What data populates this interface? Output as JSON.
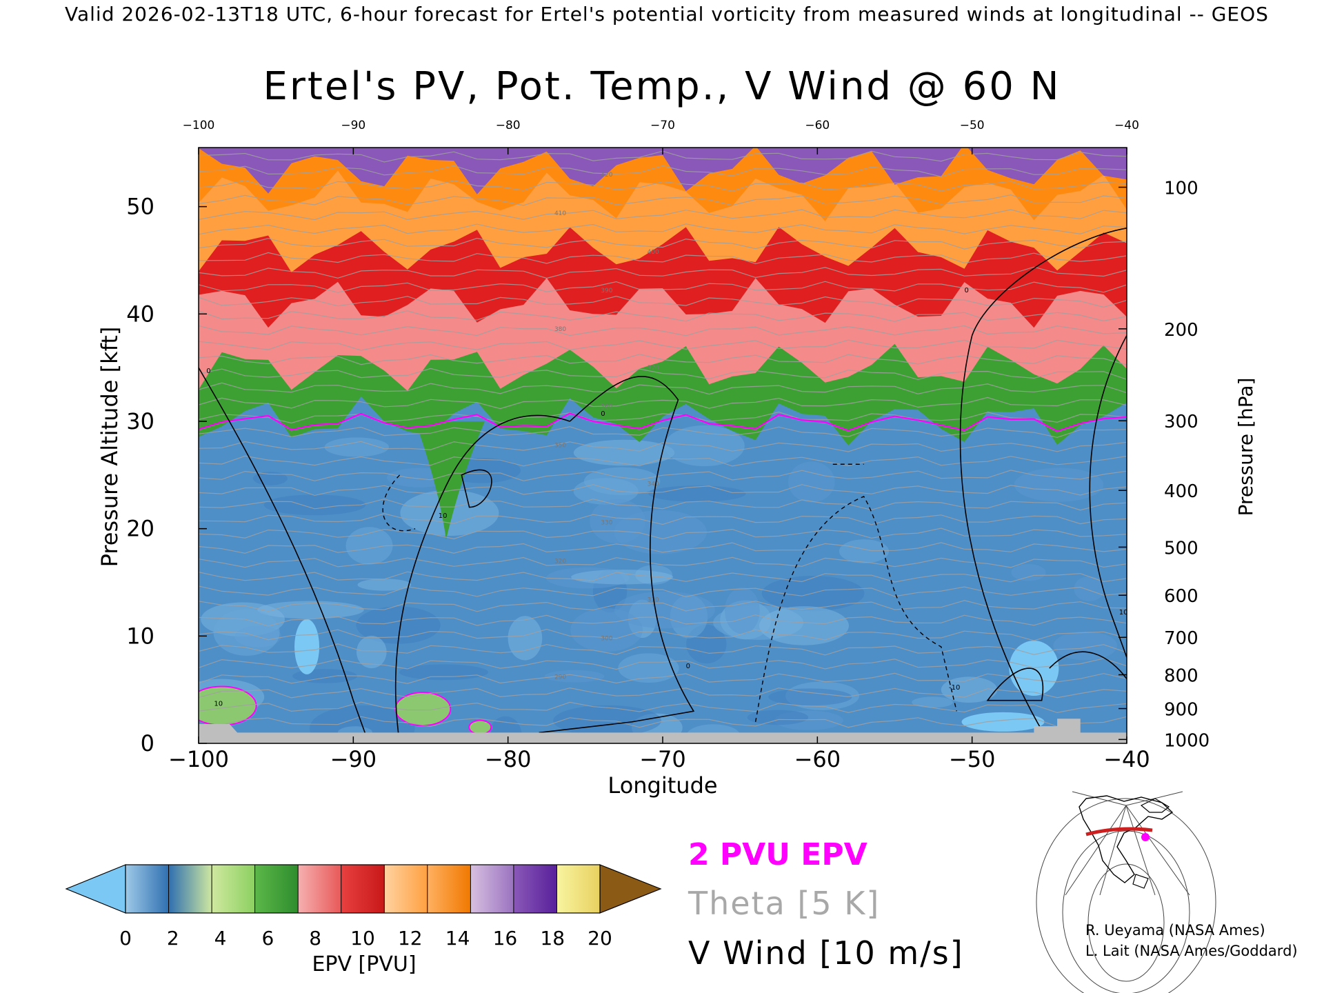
{
  "header": {
    "valid_line": "Valid 2026-02-13T18 UTC, 6-hour forecast for Ertel's potential vorticity from measured winds at longitudinal -- GEOS"
  },
  "chart_data": {
    "type": "heatmap",
    "title": "Ertel's PV, Pot. Temp., V Wind @ 60 N",
    "xlabel": "Longitude",
    "ylabel_left": "Pressure Altitude [kft]",
    "ylabel_right": "Pressure [hPa]",
    "xlim": [
      -100,
      -40
    ],
    "ylim": [
      0,
      55.5
    ],
    "x_ticks": [
      -100,
      -90,
      -80,
      -70,
      -60,
      -50,
      -40
    ],
    "x_tick_labels": [
      "−100",
      "−90",
      "−80",
      "−70",
      "−60",
      "−50",
      "−40"
    ],
    "top_x_tick_labels": [
      "−100",
      "−90",
      "−80",
      "−70",
      "−60",
      "−50",
      "−40"
    ],
    "left_ticks": [
      0,
      10,
      20,
      30,
      40,
      50
    ],
    "left_tick_labels": [
      "0",
      "10",
      "20",
      "30",
      "40",
      "50"
    ],
    "right_ticks_hpa": [
      100,
      200,
      300,
      400,
      500,
      600,
      700,
      800,
      900,
      1000
    ],
    "right_tick_labels": [
      "100",
      "200",
      "300",
      "400",
      "500",
      "600",
      "700",
      "800",
      "900",
      "1000"
    ],
    "pv_layers": [
      {
        "range_pvu": "0-1.5",
        "color": "#4f93c8",
        "base_kft": 0,
        "top_kft": 29.5
      },
      {
        "range_pvu": "2 PVU",
        "color": "#d400d4",
        "base_kft": 29.8,
        "top_kft": 30.2
      },
      {
        "range_pvu": "4-6",
        "color": "#3ca033",
        "base_kft": 30,
        "top_kft": 35
      },
      {
        "range_pvu": "6-8",
        "color": "#f48a8a",
        "base_kft": 35,
        "top_kft": 41
      },
      {
        "range_pvu": "8-10",
        "color": "#e02020",
        "base_kft": 41,
        "top_kft": 46
      },
      {
        "range_pvu": "10-12",
        "color": "#ff9f40",
        "base_kft": 46,
        "top_kft": 51
      },
      {
        "range_pvu": "12-14",
        "color": "#ff8a10",
        "base_kft": 51,
        "top_kft": 53.5
      },
      {
        "range_pvu": "14-18",
        "color": "#8a58b8",
        "base_kft": 53.5,
        "top_kft": 55.5
      }
    ],
    "v_wind_contour_labels": [
      "0",
      "10",
      "-10"
    ],
    "theta_contour_labels": [
      "290",
      "300",
      "310",
      "320",
      "330",
      "340",
      "350",
      "360",
      "370",
      "380",
      "390",
      "400",
      "410",
      "420"
    ],
    "colorbar": {
      "label": "EPV [PVU]",
      "ticks": [
        0,
        2,
        4,
        6,
        8,
        10,
        12,
        14,
        16,
        18,
        20
      ],
      "tick_labels": [
        "0",
        "2",
        "4",
        "6",
        "8",
        "10",
        "12",
        "14",
        "16",
        "18",
        "20"
      ],
      "under_color": "#7cc8f4",
      "over_color": "#8b5a14",
      "segments": [
        [
          "#9ec9e8",
          "#2f6fb0"
        ],
        [
          "#2f6fb0",
          "#cfe8a0"
        ],
        [
          "#cfe8a0",
          "#8cd060"
        ],
        [
          "#5cb848",
          "#2e8c2e"
        ],
        [
          "#f6b0b0",
          "#e85858"
        ],
        [
          "#e84040",
          "#c81818"
        ],
        [
          "#ffd2a0",
          "#ffa040"
        ],
        [
          "#ffb060",
          "#f07800"
        ],
        [
          "#d8c0e0",
          "#9a72c0"
        ],
        [
          "#8a58b8",
          "#58209a"
        ],
        [
          "#f8f4a0",
          "#e8d060"
        ]
      ]
    }
  },
  "legend": {
    "pv_line": "2 PVU EPV",
    "pv_line_color": "#ff00ff",
    "theta": "Theta [5 K]",
    "theta_color": "#a8a8a8",
    "vwind": "V Wind [10 m/s]"
  },
  "credits": {
    "line1": "R. Ueyama (NASA Ames)",
    "line2": "L. Lait (NASA Ames/Goddard)"
  },
  "colors": {
    "terrain": "#bebebe",
    "theta_line": "#a0a0a0",
    "vwind_line": "#000000"
  }
}
